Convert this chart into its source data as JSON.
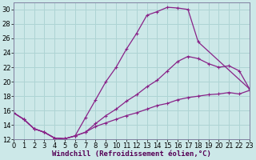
{
  "xlabel": "Windchill (Refroidissement éolien,°C)",
  "bg_color": "#cce8e8",
  "grid_color": "#aed4d4",
  "line_color": "#882288",
  "xlim": [
    0,
    23
  ],
  "ylim": [
    12,
    31
  ],
  "xticks": [
    0,
    1,
    2,
    3,
    4,
    5,
    6,
    7,
    8,
    9,
    10,
    11,
    12,
    13,
    14,
    15,
    16,
    17,
    18,
    19,
    20,
    21,
    22,
    23
  ],
  "yticks": [
    12,
    14,
    16,
    18,
    20,
    22,
    24,
    26,
    28,
    30
  ],
  "curve_top_x": [
    0,
    1,
    2,
    3,
    4,
    5,
    6,
    7,
    8,
    9,
    10,
    11,
    12,
    13,
    14,
    15,
    16,
    17,
    18
  ],
  "curve_top_y": [
    15.7,
    14.8,
    13.5,
    13.0,
    12.2,
    12.1,
    12.5,
    15.0,
    17.5,
    20.0,
    22.0,
    24.5,
    26.7,
    29.2,
    29.7,
    30.3,
    30.2,
    30.0,
    25.5
  ],
  "curve_mid_x": [
    0,
    1,
    2,
    3,
    4,
    5,
    6,
    7,
    8,
    9,
    10,
    11,
    12,
    13,
    14,
    15,
    16,
    17,
    18,
    19,
    20,
    21,
    22,
    23
  ],
  "curve_mid_y": [
    15.7,
    14.8,
    13.5,
    13.0,
    12.2,
    12.1,
    12.5,
    13.0,
    14.2,
    15.3,
    16.2,
    17.3,
    18.2,
    19.3,
    20.2,
    21.5,
    22.8,
    23.5,
    23.2,
    22.5,
    22.0,
    22.2,
    21.5,
    19.0
  ],
  "curve_bot_x": [
    0,
    1,
    2,
    3,
    4,
    5,
    6,
    7,
    8,
    9,
    10,
    11,
    12,
    13,
    14,
    15,
    16,
    17,
    18,
    19,
    20,
    21,
    22,
    23
  ],
  "curve_bot_y": [
    15.7,
    14.8,
    13.5,
    13.0,
    12.2,
    12.1,
    12.5,
    13.0,
    13.8,
    14.3,
    14.8,
    15.3,
    15.7,
    16.2,
    16.7,
    17.0,
    17.5,
    17.8,
    18.0,
    18.2,
    18.3,
    18.5,
    18.3,
    18.8
  ],
  "xlabel_fontsize": 6.5,
  "tick_fontsize": 6.0
}
